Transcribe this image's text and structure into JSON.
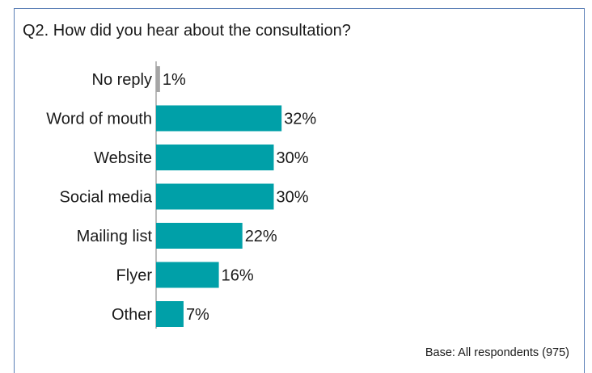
{
  "chart_data": {
    "type": "bar",
    "orientation": "horizontal",
    "title": "Q2. How did you hear about the consultation?",
    "categories": [
      "No reply",
      "Word of mouth",
      "Website",
      "Social media",
      "Mailing list",
      "Flyer",
      "Other"
    ],
    "values": [
      1,
      32,
      30,
      30,
      22,
      16,
      7
    ],
    "value_labels": [
      "1%",
      "32%",
      "30%",
      "30%",
      "22%",
      "16%",
      "7%"
    ],
    "bar_colors": [
      "#a6a6a6",
      "#00a0a8",
      "#00a0a8",
      "#00a0a8",
      "#00a0a8",
      "#00a0a8",
      "#00a0a8"
    ],
    "xlim": [
      0,
      100
    ],
    "grid": false,
    "legend": "none",
    "note": "Base: All respondents (975)"
  },
  "colors": {
    "accent": "#00a0a8",
    "no_reply": "#a6a6a6",
    "frame_border": "#5b7fb6",
    "axis": "#a6a6a6"
  }
}
